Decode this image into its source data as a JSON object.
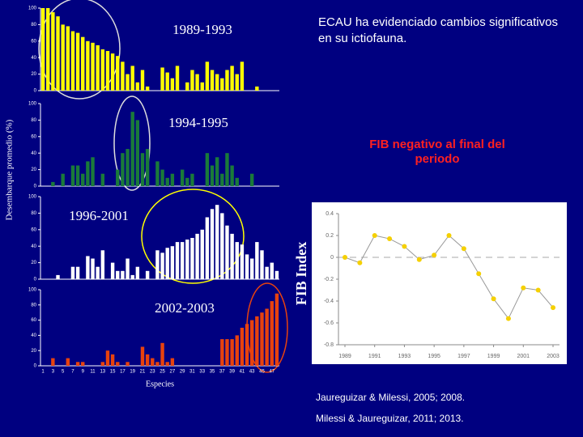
{
  "slide": {
    "heading": "ECAU ha evidenciado cambios significativos en su ictiofauna.",
    "note": "FIB negativo al final del periodo",
    "references": [
      "Jaureguizar & Milessi, 2005; 2008.",
      "Milessi & Jaureguizar, 2011; 2013."
    ],
    "shared_ylabel": "Desembarque promedio (%)"
  },
  "chart_data": [
    {
      "type": "bar",
      "title": "1989-1993",
      "color": "#ffff00",
      "ylim": [
        0,
        100
      ],
      "yticks": [
        0,
        20,
        40,
        60,
        80,
        100
      ],
      "values": [
        100,
        100,
        95,
        90,
        80,
        78,
        72,
        70,
        65,
        60,
        58,
        55,
        50,
        48,
        45,
        42,
        35,
        20,
        30,
        10,
        25,
        5,
        0,
        0,
        28,
        22,
        15,
        30,
        0,
        10,
        25,
        20,
        10,
        35,
        25,
        20,
        15,
        25,
        30,
        20,
        35,
        0,
        0,
        5,
        0,
        0,
        0,
        0
      ]
    },
    {
      "type": "bar",
      "title": "1994-1995",
      "color": "#1a7a3a",
      "ylim": [
        0,
        100
      ],
      "yticks": [
        0,
        20,
        40,
        60,
        80,
        100
      ],
      "values": [
        0,
        0,
        5,
        0,
        15,
        0,
        25,
        25,
        15,
        30,
        35,
        0,
        15,
        0,
        0,
        20,
        40,
        45,
        90,
        80,
        40,
        45,
        0,
        30,
        20,
        10,
        15,
        0,
        20,
        10,
        15,
        0,
        0,
        40,
        25,
        35,
        15,
        40,
        25,
        10,
        0,
        0,
        15,
        0,
        0,
        0,
        0,
        0
      ]
    },
    {
      "type": "bar",
      "title": "1996-2001",
      "color": "#ffffff",
      "ylim": [
        0,
        100
      ],
      "yticks": [
        0,
        20,
        40,
        60,
        80,
        100
      ],
      "values": [
        0,
        0,
        0,
        5,
        0,
        0,
        15,
        15,
        0,
        28,
        25,
        15,
        35,
        0,
        20,
        10,
        10,
        25,
        5,
        15,
        0,
        10,
        0,
        35,
        32,
        38,
        40,
        45,
        45,
        48,
        50,
        55,
        60,
        75,
        85,
        90,
        80,
        65,
        55,
        45,
        42,
        30,
        25,
        45,
        35,
        15,
        20,
        10
      ]
    },
    {
      "type": "bar",
      "title": "2002-2003",
      "color": "#e8420e",
      "ylim": [
        0,
        100
      ],
      "yticks": [
        0,
        20,
        40,
        60,
        80,
        100
      ],
      "xlabel": "Especies",
      "categories": [
        1,
        null,
        3,
        null,
        5,
        null,
        7,
        null,
        9,
        null,
        11,
        null,
        13,
        null,
        15,
        null,
        17,
        null,
        19,
        null,
        21,
        null,
        23,
        null,
        25,
        null,
        27,
        null,
        29,
        null,
        31,
        null,
        33,
        null,
        35,
        null,
        37,
        null,
        39,
        null,
        41,
        null,
        43,
        null,
        45,
        null,
        47,
        null
      ],
      "values": [
        0,
        0,
        10,
        0,
        0,
        10,
        0,
        5,
        5,
        0,
        0,
        0,
        5,
        20,
        15,
        5,
        0,
        5,
        0,
        0,
        25,
        15,
        10,
        5,
        30,
        5,
        10,
        0,
        0,
        0,
        0,
        0,
        0,
        0,
        0,
        0,
        35,
        35,
        35,
        40,
        50,
        55,
        60,
        65,
        70,
        75,
        85,
        95
      ]
    },
    {
      "type": "line",
      "ylabel": "FIB Index",
      "color": "#f5d000",
      "line_color": "#999999",
      "x": [
        1989,
        1990,
        1991,
        1992,
        1993,
        1994,
        1995,
        1996,
        1997,
        1998,
        1999,
        2000,
        2001,
        2002,
        2003
      ],
      "values": [
        0,
        -0.05,
        0.2,
        0.17,
        0.1,
        -0.02,
        0.02,
        0.2,
        0.08,
        -0.15,
        -0.38,
        -0.56,
        -0.28,
        -0.3,
        -0.46
      ],
      "xlim": [
        1989,
        2003
      ],
      "xticks": [
        1989,
        1991,
        1993,
        1995,
        1997,
        1999,
        2001,
        2003
      ],
      "ylim": [
        -0.8,
        0.4
      ],
      "yticks": [
        0.4,
        0.2,
        0,
        -0.2,
        -0.4,
        -0.6,
        -0.8
      ]
    }
  ]
}
